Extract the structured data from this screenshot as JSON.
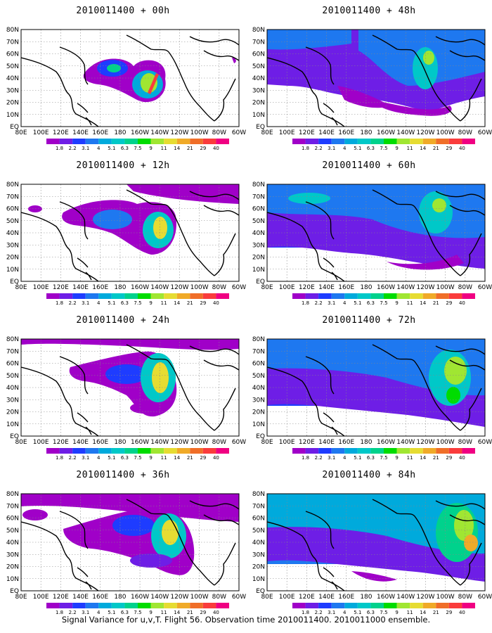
{
  "caption": "Signal Variance for u,v,T. Flight 56. Observation time 2010011400. 2010011000 ensemble.",
  "color_scale": {
    "labels": [
      "1.8",
      "2.2",
      "3.1",
      "4",
      "5.1",
      "6.3",
      "7.5",
      "9",
      "11",
      "14",
      "21",
      "29",
      "40"
    ],
    "colors": [
      "#a000c8",
      "#6e1ee6",
      "#1e3cff",
      "#1e78f0",
      "#00aadc",
      "#00c8c8",
      "#00d28c",
      "#00dc00",
      "#a0e632",
      "#e6dc32",
      "#f0aa28",
      "#f06e28",
      "#fa3c3c",
      "#f00082"
    ]
  },
  "axes": {
    "lat_labels": [
      "80N",
      "70N",
      "60N",
      "50N",
      "40N",
      "30N",
      "20N",
      "10N",
      "EQ"
    ],
    "lon_labels": [
      "80E",
      "100E",
      "120E",
      "140E",
      "160E",
      "180",
      "160W",
      "140W",
      "120W",
      "100W",
      "80W",
      "60W"
    ]
  },
  "panels": [
    {
      "title": "2010011400 + 00h",
      "lead_hours": 0
    },
    {
      "title": "2010011400 + 48h",
      "lead_hours": 48
    },
    {
      "title": "2010011400 + 12h",
      "lead_hours": 12
    },
    {
      "title": "2010011400 + 60h",
      "lead_hours": 60
    },
    {
      "title": "2010011400 + 24h",
      "lead_hours": 24
    },
    {
      "title": "2010011400 + 72h",
      "lead_hours": 72
    },
    {
      "title": "2010011400 + 36h",
      "lead_hours": 36
    },
    {
      "title": "2010011400 + 84h",
      "lead_hours": 84
    }
  ]
}
